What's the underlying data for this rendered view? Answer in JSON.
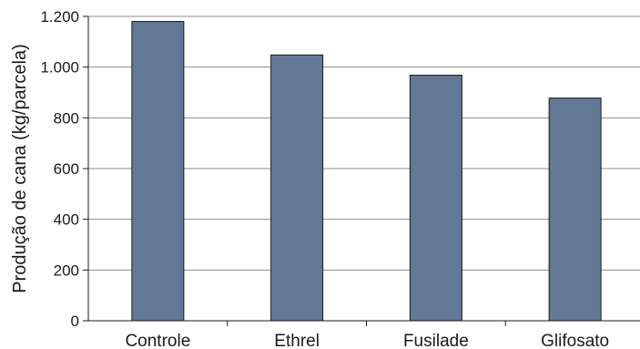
{
  "chart_data": {
    "type": "bar",
    "categories": [
      "Controle",
      "Ethrel",
      "Fusilade",
      "Glifosato"
    ],
    "values": [
      1180,
      1048,
      968,
      878
    ],
    "title": "",
    "xlabel": "",
    "ylabel": "Produção de cana (kg/parcela)",
    "ylim": [
      0,
      1200
    ],
    "yticks": [
      0,
      200,
      400,
      600,
      800,
      1000,
      1200
    ],
    "ytick_labels": [
      "0",
      "200",
      "400",
      "600",
      "800",
      "1.000",
      "1.200"
    ],
    "grid": true,
    "legend": "none",
    "colors": {
      "bar": "#627895",
      "bar_edge": "#1a1a1a",
      "grid": "#8c8c8c",
      "axis": "#1a1a1a"
    }
  }
}
